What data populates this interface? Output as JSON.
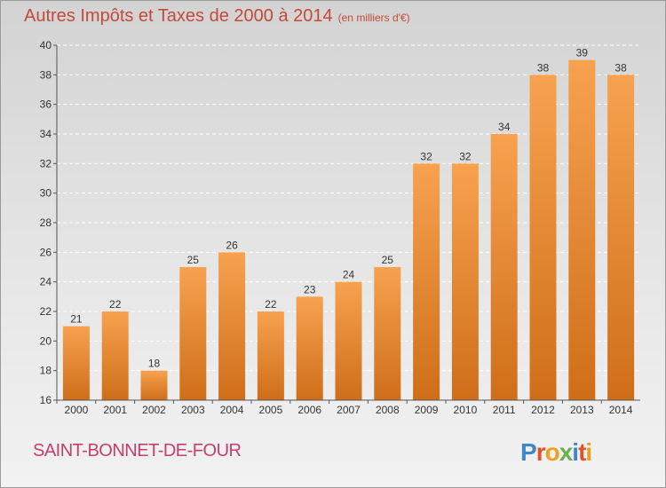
{
  "header": {
    "title": "Autres Impôts et Taxes de 2000 à 2014",
    "unit": "(en milliers d'€)"
  },
  "footer": {
    "commune": "SAINT-BONNET-DE-FOUR",
    "logo_text": "Proxiti"
  },
  "colors": {
    "bar_light": "#f7a24f",
    "bar_dark": "#cf6e19",
    "title": "#c24a3a",
    "commune": "#c2406a"
  },
  "chart_data": {
    "type": "bar",
    "title": "Autres Impôts et Taxes de 2000 à 2014",
    "subtitle": "(en milliers d'€)",
    "xlabel": "",
    "ylabel": "",
    "categories": [
      "2000",
      "2001",
      "2002",
      "2003",
      "2004",
      "2005",
      "2006",
      "2007",
      "2008",
      "2009",
      "2010",
      "2011",
      "2012",
      "2013",
      "2014"
    ],
    "values": [
      21,
      22,
      18,
      25,
      26,
      22,
      23,
      24,
      25,
      32,
      32,
      34,
      38,
      39,
      38
    ],
    "ylim": [
      16,
      40
    ],
    "yticks": [
      16,
      18,
      20,
      22,
      24,
      26,
      28,
      30,
      32,
      34,
      36,
      38,
      40
    ],
    "grid": true,
    "legend": "none"
  }
}
